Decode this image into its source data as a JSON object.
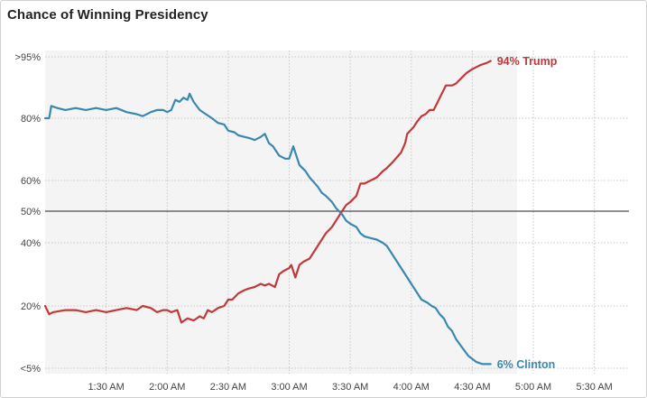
{
  "chart_data": {
    "type": "line",
    "title": "Chance of Winning Presidency",
    "x_start_minutes_after_midnight": 60,
    "x_end_minutes_after_midnight": 347,
    "x_ticks": [
      {
        "label": "1:30 AM",
        "value": 90
      },
      {
        "label": "2:00 AM",
        "value": 120
      },
      {
        "label": "2:30 AM",
        "value": 150
      },
      {
        "label": "3:00 AM",
        "value": 180
      },
      {
        "label": "3:30 AM",
        "value": 210
      },
      {
        "label": "4:00 AM",
        "value": 240
      },
      {
        "label": "4:30 AM",
        "value": 270
      },
      {
        "label": "5:00 AM",
        "value": 300
      },
      {
        "label": "5:30 AM",
        "value": 330
      }
    ],
    "y_ticks": [
      {
        "label": ">95%",
        "value": 95
      },
      {
        "label": "80%",
        "value": 80
      },
      {
        "label": "60%",
        "value": 60
      },
      {
        "label": "50%",
        "value": 50
      },
      {
        "label": "40%",
        "value": 40
      },
      {
        "label": "20%",
        "value": 20
      },
      {
        "label": "<5%",
        "value": 5
      }
    ],
    "reference_line": 50,
    "series": [
      {
        "name": "Trump",
        "end_label": "94% Trump",
        "color": "#c0393b",
        "points": [
          [
            60,
            20
          ],
          [
            62,
            18
          ],
          [
            64,
            18.5
          ],
          [
            70,
            19
          ],
          [
            75,
            19
          ],
          [
            80,
            18.5
          ],
          [
            85,
            19
          ],
          [
            90,
            18.5
          ],
          [
            95,
            19
          ],
          [
            100,
            19.5
          ],
          [
            105,
            19
          ],
          [
            108,
            20
          ],
          [
            112,
            19.5
          ],
          [
            115,
            18.5
          ],
          [
            118,
            19
          ],
          [
            120,
            19
          ],
          [
            122,
            18.5
          ],
          [
            125,
            19
          ],
          [
            127,
            16
          ],
          [
            130,
            17
          ],
          [
            133,
            16.5
          ],
          [
            136,
            17.5
          ],
          [
            138,
            17
          ],
          [
            140,
            19
          ],
          [
            142,
            18.5
          ],
          [
            145,
            19.5
          ],
          [
            148,
            20
          ],
          [
            150,
            22
          ],
          [
            152,
            22
          ],
          [
            155,
            24
          ],
          [
            158,
            25
          ],
          [
            160,
            25.5
          ],
          [
            163,
            26
          ],
          [
            166,
            27
          ],
          [
            168,
            26.5
          ],
          [
            170,
            27
          ],
          [
            173,
            26
          ],
          [
            175,
            30
          ],
          [
            177,
            31
          ],
          [
            180,
            32
          ],
          [
            181,
            33
          ],
          [
            183,
            29
          ],
          [
            185,
            33
          ],
          [
            187,
            34
          ],
          [
            190,
            35
          ],
          [
            192,
            37
          ],
          [
            194,
            39
          ],
          [
            196,
            41
          ],
          [
            198,
            43
          ],
          [
            201,
            45
          ],
          [
            204,
            48
          ],
          [
            206,
            50
          ],
          [
            208,
            52
          ],
          [
            210,
            53
          ],
          [
            213,
            55
          ],
          [
            214,
            57
          ],
          [
            215,
            59
          ],
          [
            217,
            59
          ],
          [
            220,
            60
          ],
          [
            223,
            61
          ],
          [
            226,
            63
          ],
          [
            228,
            64
          ],
          [
            231,
            66
          ],
          [
            235,
            69
          ],
          [
            237,
            72
          ],
          [
            238,
            75
          ],
          [
            241,
            77
          ],
          [
            243,
            79
          ],
          [
            245,
            80.5
          ],
          [
            247,
            81
          ],
          [
            249,
            82
          ],
          [
            251,
            82
          ],
          [
            253,
            84
          ],
          [
            255,
            86
          ],
          [
            257,
            88
          ],
          [
            260,
            88
          ],
          [
            262,
            88.5
          ],
          [
            265,
            90
          ],
          [
            267,
            91
          ],
          [
            270,
            92
          ],
          [
            272,
            92.5
          ],
          [
            274,
            93
          ],
          [
            277,
            93.5
          ],
          [
            279,
            94
          ]
        ]
      },
      {
        "name": "Clinton",
        "end_label": "6% Clinton",
        "color": "#3a88b0",
        "points": [
          [
            60,
            80
          ],
          [
            62,
            80
          ],
          [
            63,
            83
          ],
          [
            66,
            82.5
          ],
          [
            70,
            82
          ],
          [
            75,
            82.5
          ],
          [
            80,
            82
          ],
          [
            85,
            82.5
          ],
          [
            90,
            82
          ],
          [
            95,
            82.5
          ],
          [
            100,
            81.5
          ],
          [
            105,
            81
          ],
          [
            108,
            80.5
          ],
          [
            112,
            81.5
          ],
          [
            115,
            82
          ],
          [
            118,
            82
          ],
          [
            120,
            81.5
          ],
          [
            122,
            82
          ],
          [
            124,
            84.5
          ],
          [
            126,
            84
          ],
          [
            128,
            85
          ],
          [
            130,
            84.5
          ],
          [
            131,
            86
          ],
          [
            133,
            84
          ],
          [
            136,
            82
          ],
          [
            139,
            81
          ],
          [
            142,
            80
          ],
          [
            145,
            78.5
          ],
          [
            148,
            78
          ],
          [
            150,
            76
          ],
          [
            153,
            75.5
          ],
          [
            155,
            74.5
          ],
          [
            158,
            74
          ],
          [
            161,
            73.5
          ],
          [
            163,
            73
          ],
          [
            166,
            74
          ],
          [
            168,
            75
          ],
          [
            170,
            72
          ],
          [
            172,
            71
          ],
          [
            175,
            68
          ],
          [
            178,
            67
          ],
          [
            180,
            67
          ],
          [
            182,
            71
          ],
          [
            185,
            65
          ],
          [
            188,
            63
          ],
          [
            190,
            61
          ],
          [
            192,
            59.5
          ],
          [
            194,
            58
          ],
          [
            196,
            56
          ],
          [
            198,
            55
          ],
          [
            201,
            53
          ],
          [
            203,
            51
          ],
          [
            206,
            49
          ],
          [
            208,
            47
          ],
          [
            210,
            46
          ],
          [
            213,
            45
          ],
          [
            215,
            43
          ],
          [
            217,
            42
          ],
          [
            220,
            41.5
          ],
          [
            223,
            41
          ],
          [
            226,
            40
          ],
          [
            228,
            39
          ],
          [
            231,
            36
          ],
          [
            233,
            34
          ],
          [
            236,
            31
          ],
          [
            238,
            29
          ],
          [
            240,
            27
          ],
          [
            242,
            25
          ],
          [
            245,
            22
          ],
          [
            248,
            21
          ],
          [
            250,
            20
          ],
          [
            252,
            19.5
          ],
          [
            254,
            18
          ],
          [
            256,
            17
          ],
          [
            258,
            15
          ],
          [
            260,
            14
          ],
          [
            262,
            12
          ],
          [
            265,
            10
          ],
          [
            268,
            8
          ],
          [
            272,
            6.5
          ],
          [
            275,
            6
          ],
          [
            279,
            6
          ]
        ]
      }
    ]
  }
}
